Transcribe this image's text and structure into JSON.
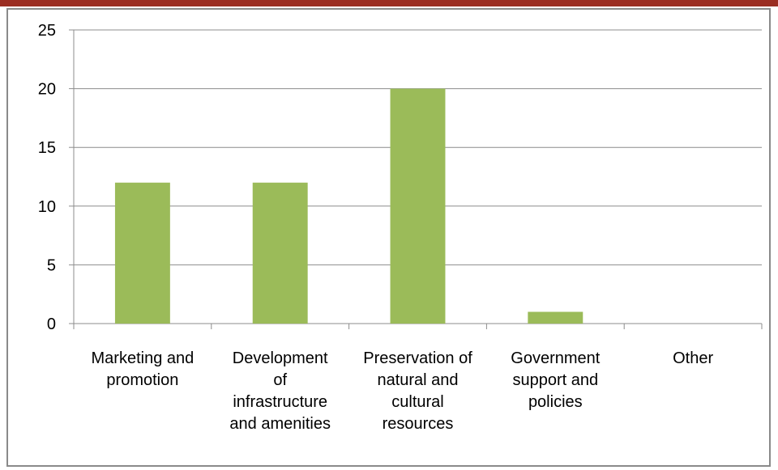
{
  "colors": {
    "top_bar": "#9b2d22",
    "bar_fill": "#9bbb59",
    "gridline": "#8c8c8c",
    "axis": "#8c8c8c",
    "frame_border": "#8a8a8a"
  },
  "chart_data": {
    "type": "bar",
    "title": "",
    "xlabel": "",
    "ylabel": "",
    "categories": [
      "Marketing and promotion",
      "Development of infrastructure and amenities",
      "Preservation of natural and cultural resources",
      "Government support and policies",
      "Other"
    ],
    "category_label_lines": [
      [
        "Marketing and",
        "promotion"
      ],
      [
        "Development",
        "of",
        "infrastructure",
        "and amenities"
      ],
      [
        "Preservation of",
        "natural and",
        "cultural",
        "resources"
      ],
      [
        "Government",
        "support and",
        "policies"
      ],
      [
        "Other"
      ]
    ],
    "values": [
      12,
      12,
      20,
      1,
      0
    ],
    "ylim": [
      0,
      25
    ],
    "yticks": [
      0,
      5,
      10,
      15,
      20,
      25
    ],
    "grid": true,
    "legend": "none"
  }
}
